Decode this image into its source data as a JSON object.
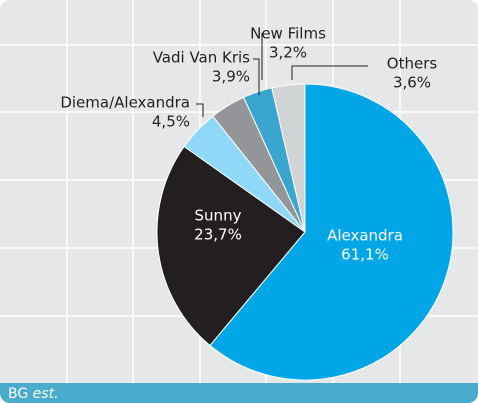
{
  "chart_data": {
    "type": "pie",
    "categories": [
      "Alexandra",
      "Sunny",
      "Diema/Alexandra",
      "Vadi Van Kris",
      "New Films",
      "Others"
    ],
    "values": [
      61.1,
      23.7,
      4.5,
      3.9,
      3.2,
      3.6
    ],
    "value_labels": [
      "61,1%",
      "23,7%",
      "4,5%",
      "3,9%",
      "3,2%",
      "3,6%"
    ],
    "colors": [
      "#00a6e6",
      "#231f20",
      "#8fd8f8",
      "#939598",
      "#3aa6d0",
      "#d1d3d4"
    ],
    "footer": {
      "source": "BG",
      "note": "est."
    }
  }
}
